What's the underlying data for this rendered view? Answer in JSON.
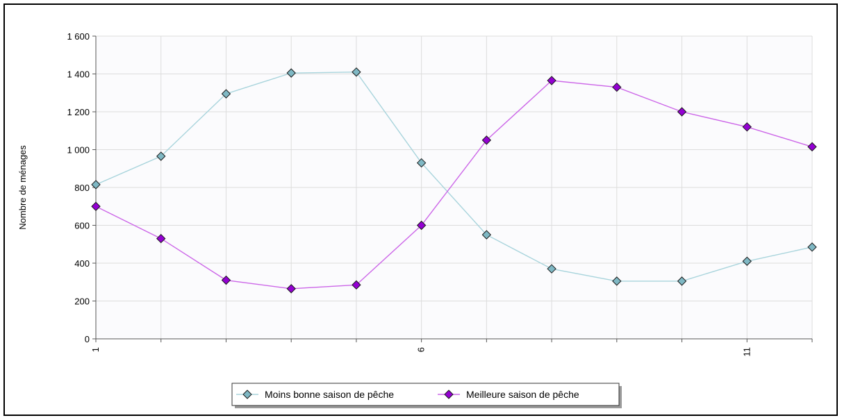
{
  "chart_data": {
    "type": "line",
    "title": "",
    "xlabel": "",
    "ylabel": "Nombre de ménages",
    "x": [
      1,
      2,
      3,
      4,
      5,
      6,
      7,
      8,
      9,
      10,
      11,
      12
    ],
    "x_tick_labels": [
      "1",
      "6",
      "11"
    ],
    "x_tick_label_values": [
      1,
      6,
      11
    ],
    "y_tick_labels": [
      "0",
      "200",
      "400",
      "600",
      "800",
      "1 000",
      "1 200",
      "1 400",
      "1 600"
    ],
    "y_tick_values": [
      0,
      200,
      400,
      600,
      800,
      1000,
      1200,
      1400,
      1600
    ],
    "ylim": [
      0,
      1600
    ],
    "xlim": [
      1,
      12
    ],
    "grid": true,
    "legend_position": "bottom",
    "series": [
      {
        "name": "Moins bonne saison de pêche",
        "values": [
          815,
          965,
          1295,
          1405,
          1410,
          930,
          550,
          370,
          305,
          305,
          410,
          485
        ],
        "line_color": "#a8d4dc",
        "marker_color": "#7fb8c4"
      },
      {
        "name": "Meilleure saison de pêche",
        "values": [
          700,
          530,
          310,
          265,
          285,
          600,
          1050,
          1365,
          1330,
          1200,
          1120,
          1015
        ],
        "line_color": "#cc66e8",
        "marker_color": "#9400d3"
      }
    ]
  }
}
